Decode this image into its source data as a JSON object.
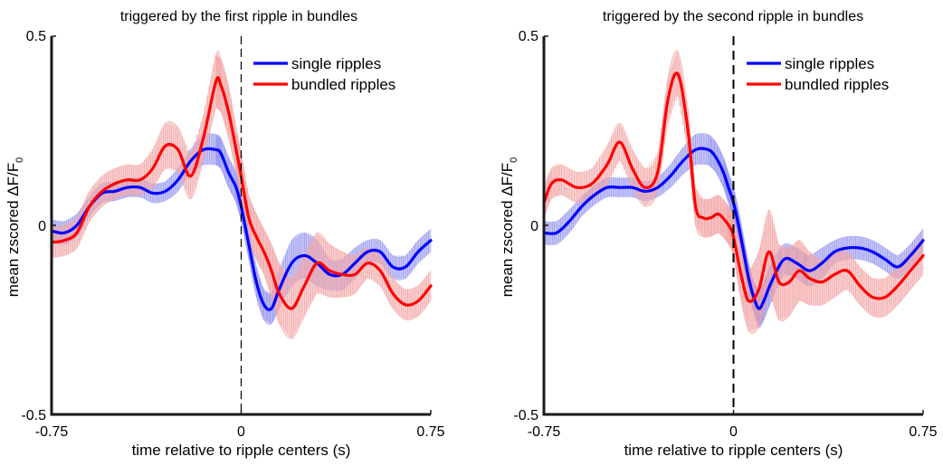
{
  "chart_data": [
    {
      "type": "line",
      "title": "triggered by the first ripple in bundles",
      "xlabel": "time relative to ripple centers (s)",
      "ylabel": "mean zscored ΔF/F",
      "ylabel_subscript": "0",
      "xlim": [
        -0.75,
        0.75
      ],
      "ylim": [
        -0.5,
        0.5
      ],
      "xtick_labels": [
        "-0.75",
        "0",
        "0.75"
      ],
      "ytick_labels": [
        "0.5",
        "0",
        "-0.5"
      ],
      "xticks": [
        -0.75,
        0,
        0.75
      ],
      "yticks": [
        0.5,
        0,
        -0.5
      ],
      "vline_x": 0,
      "legend_position": "top-right",
      "grid": false,
      "series": [
        {
          "name": "single ripples",
          "color": "#0000ff",
          "shade_color": "#8f8ff0",
          "x": [
            -0.75,
            -0.7,
            -0.65,
            -0.6,
            -0.55,
            -0.5,
            -0.45,
            -0.4,
            -0.35,
            -0.3,
            -0.25,
            -0.2,
            -0.15,
            -0.1,
            -0.08,
            -0.05,
            -0.02,
            0,
            0.03,
            0.06,
            0.09,
            0.12,
            0.15,
            0.2,
            0.25,
            0.3,
            0.35,
            0.4,
            0.45,
            0.5,
            0.55,
            0.6,
            0.65,
            0.7,
            0.75
          ],
          "y": [
            -0.015,
            -0.02,
            0.0,
            0.05,
            0.085,
            0.09,
            0.1,
            0.1,
            0.085,
            0.09,
            0.12,
            0.17,
            0.2,
            0.2,
            0.19,
            0.14,
            0.1,
            0.05,
            -0.05,
            -0.15,
            -0.21,
            -0.22,
            -0.17,
            -0.1,
            -0.08,
            -0.1,
            -0.13,
            -0.13,
            -0.1,
            -0.07,
            -0.07,
            -0.11,
            -0.11,
            -0.07,
            -0.04
          ],
          "err": [
            0.03,
            0.03,
            0.03,
            0.025,
            0.025,
            0.025,
            0.025,
            0.025,
            0.025,
            0.025,
            0.03,
            0.03,
            0.04,
            0.04,
            0.04,
            0.04,
            0.04,
            0.04,
            0.04,
            0.04,
            0.04,
            0.04,
            0.05,
            0.06,
            0.06,
            0.06,
            0.04,
            0.04,
            0.04,
            0.03,
            0.03,
            0.03,
            0.03,
            0.03,
            0.03
          ]
        },
        {
          "name": "bundled ripples",
          "color": "#ff0000",
          "shade_color": "#f2a0a0",
          "x": [
            -0.75,
            -0.7,
            -0.65,
            -0.6,
            -0.55,
            -0.5,
            -0.45,
            -0.4,
            -0.35,
            -0.3,
            -0.25,
            -0.2,
            -0.15,
            -0.1,
            -0.08,
            -0.05,
            -0.02,
            0,
            0.03,
            0.06,
            0.09,
            0.12,
            0.15,
            0.2,
            0.25,
            0.3,
            0.35,
            0.4,
            0.45,
            0.5,
            0.55,
            0.6,
            0.65,
            0.7,
            0.75
          ],
          "y": [
            -0.045,
            -0.04,
            -0.02,
            0.05,
            0.09,
            0.11,
            0.12,
            0.12,
            0.15,
            0.21,
            0.2,
            0.13,
            0.23,
            0.38,
            0.37,
            0.3,
            0.2,
            0.13,
            0.02,
            -0.03,
            -0.07,
            -0.12,
            -0.18,
            -0.22,
            -0.16,
            -0.1,
            -0.12,
            -0.13,
            -0.13,
            -0.1,
            -0.12,
            -0.18,
            -0.21,
            -0.2,
            -0.16
          ],
          "err": [
            0.04,
            0.04,
            0.04,
            0.04,
            0.04,
            0.04,
            0.04,
            0.04,
            0.05,
            0.06,
            0.06,
            0.06,
            0.06,
            0.07,
            0.07,
            0.07,
            0.06,
            0.06,
            0.06,
            0.06,
            0.06,
            0.07,
            0.08,
            0.08,
            0.08,
            0.08,
            0.07,
            0.06,
            0.05,
            0.04,
            0.04,
            0.04,
            0.04,
            0.04,
            0.04
          ]
        }
      ]
    },
    {
      "type": "line",
      "title": "triggered by the second ripple in bundles",
      "xlabel": "time relative to ripple centers (s)",
      "ylabel": "mean zscored ΔF/F",
      "ylabel_subscript": "0",
      "xlim": [
        -0.75,
        0.75
      ],
      "ylim": [
        -0.5,
        0.5
      ],
      "xtick_labels": [
        "-0.75",
        "0",
        "0.75"
      ],
      "ytick_labels": [
        "0.5",
        "0",
        "-0.5"
      ],
      "xticks": [
        -0.75,
        0,
        0.75
      ],
      "yticks": [
        0.5,
        0,
        -0.5
      ],
      "vline_x": 0,
      "legend_position": "top-right",
      "grid": false,
      "series": [
        {
          "name": "single ripples",
          "color": "#0000ff",
          "shade_color": "#8f8ff0",
          "x": [
            -0.75,
            -0.7,
            -0.65,
            -0.6,
            -0.55,
            -0.5,
            -0.45,
            -0.4,
            -0.35,
            -0.3,
            -0.25,
            -0.2,
            -0.15,
            -0.1,
            -0.07,
            -0.04,
            -0.02,
            0,
            0.02,
            0.04,
            0.06,
            0.08,
            0.1,
            0.12,
            0.15,
            0.2,
            0.25,
            0.3,
            0.35,
            0.4,
            0.45,
            0.5,
            0.55,
            0.6,
            0.65,
            0.7,
            0.75
          ],
          "y": [
            -0.02,
            -0.02,
            0.01,
            0.05,
            0.08,
            0.1,
            0.1,
            0.1,
            0.09,
            0.1,
            0.13,
            0.17,
            0.2,
            0.2,
            0.18,
            0.14,
            0.1,
            0.06,
            0.0,
            -0.07,
            -0.14,
            -0.19,
            -0.22,
            -0.2,
            -0.15,
            -0.09,
            -0.1,
            -0.12,
            -0.1,
            -0.07,
            -0.06,
            -0.06,
            -0.07,
            -0.09,
            -0.11,
            -0.08,
            -0.04
          ],
          "err": [
            0.03,
            0.03,
            0.03,
            0.025,
            0.025,
            0.025,
            0.025,
            0.025,
            0.025,
            0.025,
            0.03,
            0.035,
            0.04,
            0.04,
            0.04,
            0.04,
            0.04,
            0.04,
            0.04,
            0.04,
            0.04,
            0.04,
            0.05,
            0.05,
            0.05,
            0.04,
            0.04,
            0.04,
            0.04,
            0.03,
            0.03,
            0.03,
            0.03,
            0.03,
            0.03,
            0.03,
            0.03
          ]
        },
        {
          "name": "bundled ripples",
          "color": "#ff0000",
          "shade_color": "#f2a0a0",
          "x": [
            -0.75,
            -0.72,
            -0.68,
            -0.62,
            -0.56,
            -0.5,
            -0.45,
            -0.4,
            -0.35,
            -0.3,
            -0.26,
            -0.22,
            -0.18,
            -0.15,
            -0.12,
            -0.09,
            -0.06,
            -0.03,
            -0.01,
            0,
            0.03,
            0.06,
            0.1,
            0.14,
            0.18,
            0.22,
            0.26,
            0.3,
            0.35,
            0.4,
            0.45,
            0.5,
            0.55,
            0.6,
            0.65,
            0.7,
            0.75
          ],
          "y": [
            0.06,
            0.11,
            0.12,
            0.1,
            0.11,
            0.16,
            0.22,
            0.15,
            0.1,
            0.14,
            0.33,
            0.4,
            0.25,
            0.05,
            0.02,
            0.02,
            0.03,
            0.01,
            -0.01,
            -0.03,
            -0.13,
            -0.2,
            -0.17,
            -0.07,
            -0.15,
            -0.15,
            -0.12,
            -0.14,
            -0.15,
            -0.13,
            -0.12,
            -0.16,
            -0.19,
            -0.19,
            -0.16,
            -0.12,
            -0.08
          ],
          "err": [
            0.04,
            0.04,
            0.04,
            0.04,
            0.04,
            0.05,
            0.05,
            0.05,
            0.05,
            0.05,
            0.06,
            0.06,
            0.06,
            0.05,
            0.05,
            0.05,
            0.05,
            0.05,
            0.05,
            0.05,
            0.07,
            0.08,
            0.1,
            0.11,
            0.1,
            0.09,
            0.08,
            0.07,
            0.06,
            0.06,
            0.05,
            0.05,
            0.05,
            0.05,
            0.05,
            0.05,
            0.05
          ]
        }
      ]
    }
  ]
}
